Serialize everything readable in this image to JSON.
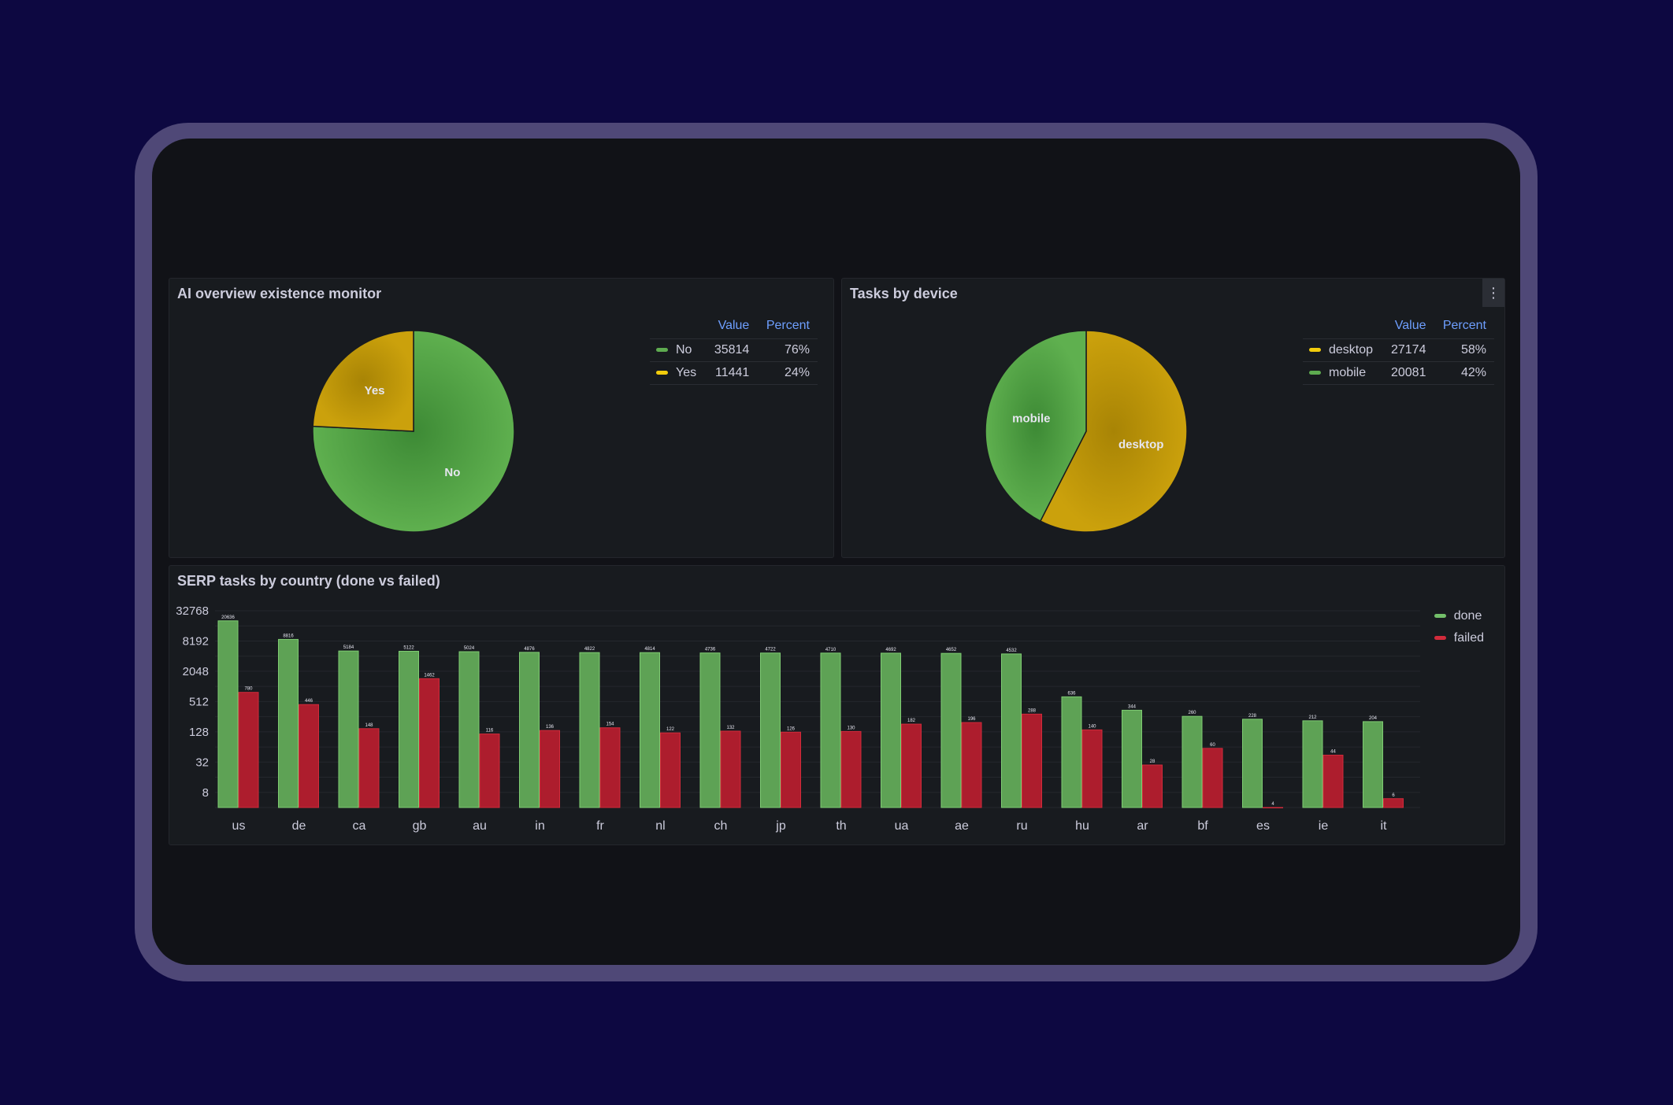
{
  "colors": {
    "green": "#5eab50",
    "yellow": "#c8a00c",
    "red": "#ad1d2d",
    "accent": "#6e9fff"
  },
  "panels": {
    "ai_overview": {
      "title": "AI overview existence monitor",
      "legend": {
        "value_header": "Value",
        "percent_header": "Percent",
        "rows": [
          {
            "name": "No",
            "value": "35814",
            "percent": "76%",
            "color": "#5eab50"
          },
          {
            "name": "Yes",
            "value": "11441",
            "percent": "24%",
            "color": "#f2cc0c"
          }
        ]
      }
    },
    "device": {
      "title": "Tasks by device",
      "menu_icon": "more-vertical-icon",
      "legend": {
        "value_header": "Value",
        "percent_header": "Percent",
        "rows": [
          {
            "name": "desktop",
            "value": "27174",
            "percent": "58%",
            "color": "#f2cc0c"
          },
          {
            "name": "mobile",
            "value": "20081",
            "percent": "42%",
            "color": "#5eab50"
          }
        ]
      }
    },
    "serp": {
      "title": "SERP tasks by country (done vs failed)",
      "legend": [
        {
          "name": "done",
          "color": "#73bf69"
        },
        {
          "name": "failed",
          "color": "#d22b3b"
        }
      ]
    }
  },
  "chart_data": [
    {
      "type": "pie",
      "title": "AI overview existence monitor",
      "labels": [
        "No",
        "Yes"
      ],
      "values": [
        35814,
        11441
      ],
      "percents": [
        "76%",
        "24%"
      ],
      "legend_placement": "right"
    },
    {
      "type": "pie",
      "title": "Tasks by device",
      "labels": [
        "desktop",
        "mobile"
      ],
      "values": [
        27174,
        20081
      ],
      "percents": [
        "58%",
        "42%"
      ],
      "legend_placement": "right"
    },
    {
      "type": "bar",
      "title": "SERP tasks by country (done vs failed)",
      "categories": [
        "us",
        "de",
        "ca",
        "gb",
        "au",
        "in",
        "fr",
        "nl",
        "ch",
        "jp",
        "th",
        "ua",
        "ae",
        "ru",
        "hu",
        "ar",
        "bf",
        "es",
        "ie",
        "it"
      ],
      "series": [
        {
          "name": "done",
          "values": [
            20636,
            8816,
            5184,
            5122,
            5024,
            4876,
            4822,
            4814,
            4736,
            4722,
            4710,
            4692,
            4652,
            4532,
            636,
            344,
            260,
            228,
            212,
            204
          ]
        },
        {
          "name": "failed",
          "values": [
            780,
            446,
            148,
            1462,
            116,
            136,
            154,
            122,
            132,
            126,
            130,
            182,
            196,
            288,
            140,
            28,
            60,
            4,
            44,
            6
          ]
        }
      ],
      "yscale": "log2",
      "ylim": [
        4,
        32768
      ],
      "yticks": [
        "8",
        "32",
        "128",
        "512",
        "2048",
        "8192",
        "32768"
      ],
      "grid": true,
      "legend_placement": "right"
    }
  ]
}
